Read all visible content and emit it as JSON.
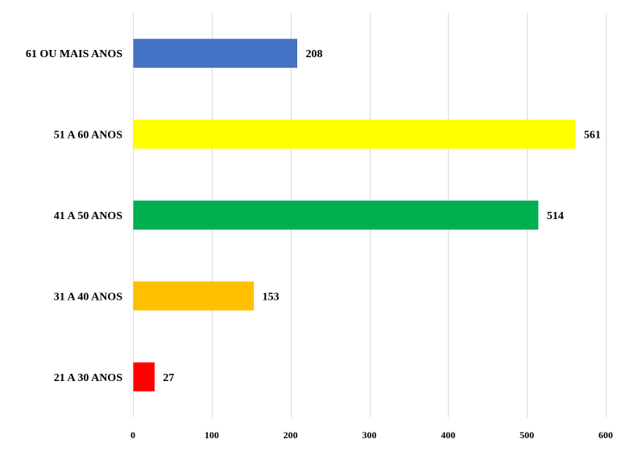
{
  "chart_data": {
    "type": "bar",
    "orientation": "horizontal",
    "title": "",
    "xlabel": "",
    "ylabel": "",
    "categories": [
      "61 OU MAIS ANOS",
      "51 A 60 ANOS",
      "41 A 50 ANOS",
      "31 A 40 ANOS",
      "21 A 30 ANOS"
    ],
    "values": [
      208,
      561,
      514,
      153,
      27
    ],
    "colors": [
      "#4472c4",
      "#ffff00",
      "#00b050",
      "#ffc000",
      "#ff0000"
    ],
    "xlim": [
      0,
      600
    ],
    "xticks": [
      0,
      100,
      200,
      300,
      400,
      500,
      600
    ],
    "grid": true,
    "legend": "none",
    "data_labels": true
  }
}
